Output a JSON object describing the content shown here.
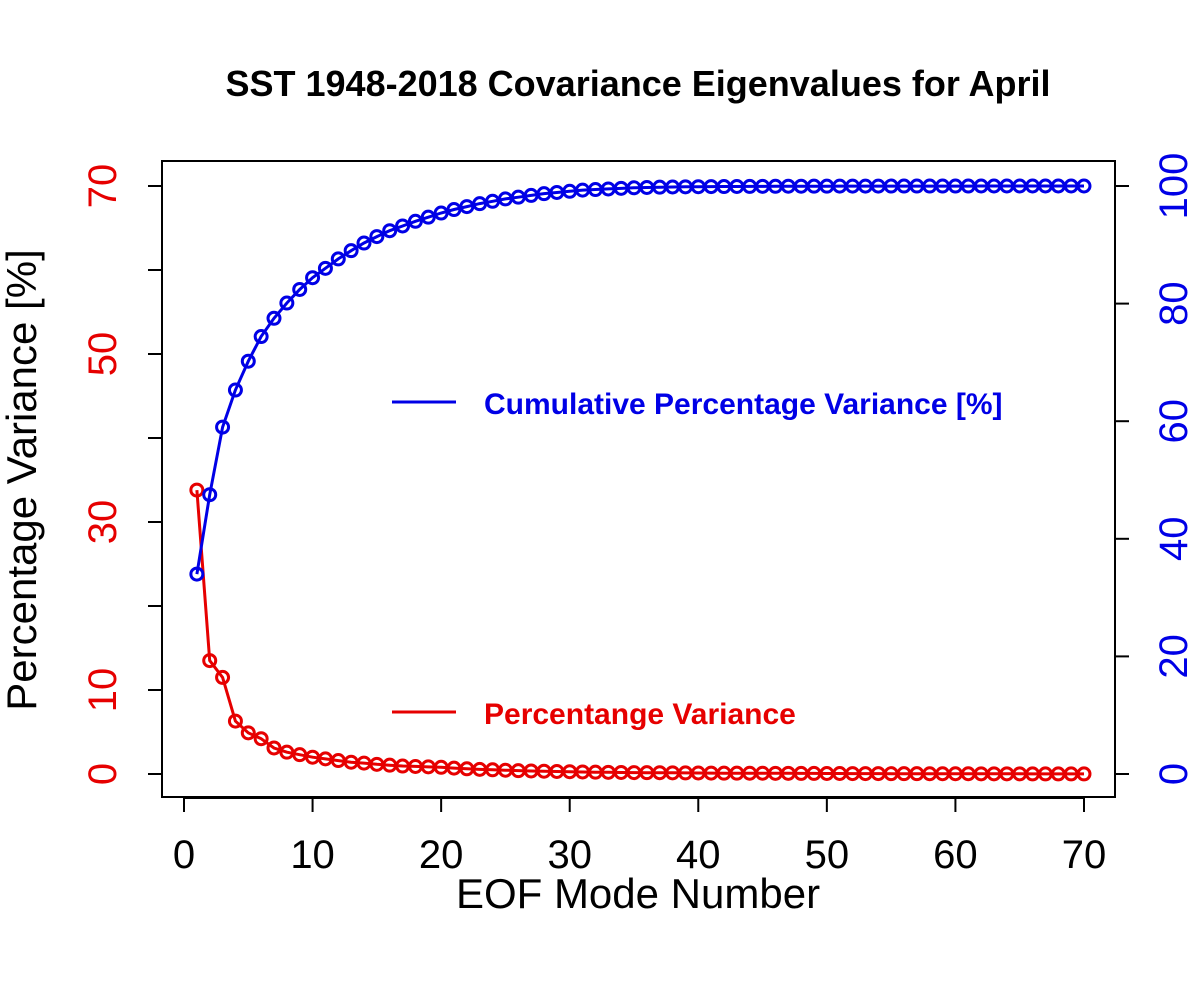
{
  "chart_data": {
    "type": "line",
    "title": "SST 1948-2018 Covariance Eigenvalues for April",
    "xlabel": "EOF Mode Number",
    "ylabel_left": "Percentage Variance [%]",
    "xlim": [
      1,
      70
    ],
    "ylim_left": [
      0,
      70
    ],
    "ylim_right": [
      0,
      100
    ],
    "x_ticks": [
      0,
      10,
      20,
      30,
      40,
      50,
      60,
      70
    ],
    "y_left_ticks": [
      0,
      10,
      20,
      30,
      40,
      50,
      60,
      70
    ],
    "y_left_tick_labels": [
      "0",
      "10",
      "",
      "30",
      "",
      "50",
      "",
      "70"
    ],
    "y_right_ticks": [
      0,
      20,
      40,
      60,
      80,
      100
    ],
    "legend_placement": "center-right",
    "grid": false,
    "colors": {
      "percentage": "#e60000",
      "cumulative": "#0000e6",
      "axes": "#000000"
    },
    "series": [
      {
        "name": "Percentange Variance",
        "axis": "left",
        "x": [
          1,
          2,
          3,
          4,
          5,
          6,
          7,
          8,
          9,
          10,
          11,
          12,
          13,
          14,
          15,
          16,
          17,
          18,
          19,
          20,
          21,
          22,
          23,
          24,
          25,
          26,
          27,
          28,
          29,
          30,
          31,
          32,
          33,
          34,
          35,
          36,
          37,
          38,
          39,
          40,
          41,
          42,
          43,
          44,
          45,
          46,
          47,
          48,
          49,
          50,
          51,
          52,
          53,
          54,
          55,
          56,
          57,
          58,
          59,
          60,
          61,
          62,
          63,
          64,
          65,
          66,
          67,
          68,
          69,
          70
        ],
        "values": [
          33.8,
          13.5,
          11.5,
          6.3,
          4.9,
          4.2,
          3.1,
          2.6,
          2.3,
          2.0,
          1.8,
          1.6,
          1.4,
          1.3,
          1.15,
          1.05,
          0.95,
          0.9,
          0.85,
          0.8,
          0.7,
          0.62,
          0.55,
          0.5,
          0.45,
          0.4,
          0.36,
          0.33,
          0.3,
          0.27,
          0.24,
          0.22,
          0.2,
          0.18,
          0.17,
          0.16,
          0.15,
          0.14,
          0.13,
          0.12,
          0.11,
          0.1,
          0.1,
          0.09,
          0.09,
          0.08,
          0.08,
          0.07,
          0.07,
          0.06,
          0.06,
          0.05,
          0.05,
          0.05,
          0.04,
          0.04,
          0.04,
          0.03,
          0.03,
          0.03,
          0.03,
          0.02,
          0.02,
          0.02,
          0.02,
          0.01,
          0.01,
          0.01,
          0.01,
          0.01
        ]
      },
      {
        "name": "Cumulative Percentage Variance [%]",
        "axis": "right",
        "x": [
          1,
          2,
          3,
          4,
          5,
          6,
          7,
          8,
          9,
          10,
          11,
          12,
          13,
          14,
          15,
          16,
          17,
          18,
          19,
          20,
          21,
          22,
          23,
          24,
          25,
          26,
          27,
          28,
          29,
          30,
          31,
          32,
          33,
          34,
          35,
          36,
          37,
          38,
          39,
          40,
          41,
          42,
          43,
          44,
          45,
          46,
          47,
          48,
          49,
          50,
          51,
          52,
          53,
          54,
          55,
          56,
          57,
          58,
          59,
          60,
          61,
          62,
          63,
          64,
          65,
          66,
          67,
          68,
          69,
          70
        ],
        "values": [
          34.0,
          47.5,
          59.0,
          65.3,
          70.2,
          74.4,
          77.5,
          80.1,
          82.4,
          84.4,
          86.0,
          87.6,
          89.0,
          90.3,
          91.4,
          92.4,
          93.2,
          94.0,
          94.7,
          95.4,
          96.0,
          96.5,
          97.0,
          97.4,
          97.8,
          98.1,
          98.4,
          98.7,
          98.9,
          99.1,
          99.3,
          99.4,
          99.5,
          99.6,
          99.7,
          99.75,
          99.8,
          99.83,
          99.86,
          99.88,
          99.9,
          99.91,
          99.92,
          99.93,
          99.94,
          99.95,
          99.96,
          99.96,
          99.97,
          99.97,
          99.98,
          99.98,
          99.98,
          99.98,
          99.99,
          99.99,
          99.99,
          99.99,
          99.99,
          99.99,
          99.99,
          100,
          100,
          100,
          100,
          100,
          100,
          100,
          100,
          100
        ]
      }
    ]
  }
}
